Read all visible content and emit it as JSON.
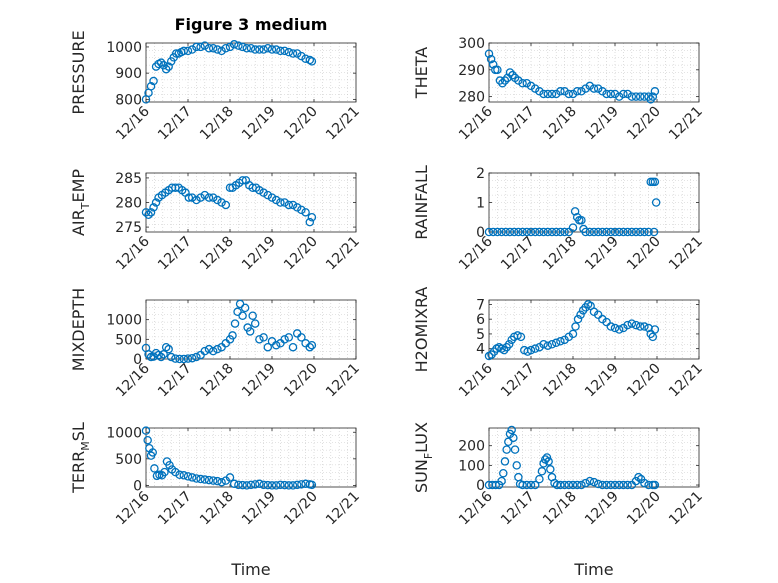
{
  "title": "Figure 3 medium",
  "xlabel": "Time",
  "chart_data": [
    {
      "type": "scatter",
      "ylabel": "PRESSURE",
      "xlim": [
        0,
        5
      ],
      "ylim": [
        790,
        1015
      ],
      "yticks": [
        800,
        900,
        1000
      ],
      "xticks": [
        "12/16",
        "12/17",
        "12/18",
        "12/19",
        "12/20",
        "12/21"
      ],
      "grid": true,
      "x": [
        0.0,
        0.06,
        0.12,
        0.18,
        0.24,
        0.3,
        0.36,
        0.42,
        0.48,
        0.54,
        0.6,
        0.66,
        0.72,
        0.78,
        0.84,
        0.9,
        1.0,
        1.1,
        1.2,
        1.3,
        1.4,
        1.5,
        1.6,
        1.7,
        1.8,
        1.9,
        2.0,
        2.1,
        2.2,
        2.3,
        2.4,
        2.5,
        2.6,
        2.7,
        2.8,
        2.9,
        3.0,
        3.1,
        3.2,
        3.3,
        3.4,
        3.5,
        3.6,
        3.7,
        3.8,
        3.9,
        3.95
      ],
      "y": [
        800,
        825,
        850,
        870,
        925,
        935,
        940,
        930,
        915,
        925,
        945,
        960,
        975,
        975,
        980,
        985,
        985,
        990,
        1000,
        1000,
        1005,
        995,
        995,
        990,
        985,
        995,
        1000,
        1010,
        1005,
        1000,
        995,
        995,
        990,
        990,
        990,
        995,
        990,
        990,
        985,
        985,
        980,
        975,
        975,
        965,
        955,
        950,
        945
      ]
    },
    {
      "type": "scatter",
      "ylabel": "THETA",
      "xlim": [
        0,
        5
      ],
      "ylim": [
        278,
        300
      ],
      "yticks": [
        280,
        290,
        300
      ],
      "xticks": [
        "12/16",
        "12/17",
        "12/18",
        "12/19",
        "12/20",
        "12/21"
      ],
      "grid": true,
      "x": [
        0.0,
        0.05,
        0.1,
        0.15,
        0.2,
        0.26,
        0.32,
        0.38,
        0.44,
        0.5,
        0.56,
        0.62,
        0.7,
        0.8,
        0.9,
        1.0,
        1.1,
        1.2,
        1.3,
        1.4,
        1.5,
        1.6,
        1.7,
        1.8,
        1.9,
        2.0,
        2.1,
        2.2,
        2.3,
        2.4,
        2.5,
        2.6,
        2.7,
        2.8,
        2.9,
        3.0,
        3.1,
        3.2,
        3.3,
        3.4,
        3.5,
        3.6,
        3.7,
        3.8,
        3.85,
        3.9,
        3.95
      ],
      "y": [
        296,
        294,
        292,
        290,
        290,
        286,
        285,
        286,
        287,
        289,
        288,
        287,
        286,
        285,
        285,
        284,
        283,
        282,
        281,
        281,
        281,
        281,
        282,
        282,
        281,
        281,
        282,
        282,
        283,
        284,
        283,
        283,
        282,
        281,
        281,
        281,
        280,
        281,
        281,
        280,
        280,
        280,
        280,
        280,
        279,
        280,
        282
      ]
    },
    {
      "type": "scatter",
      "ylabel": "AIR_TEMP",
      "xlim": [
        0,
        5
      ],
      "ylim": [
        274,
        286
      ],
      "yticks": [
        275,
        280,
        285
      ],
      "xticks": [
        "12/16",
        "12/17",
        "12/18",
        "12/19",
        "12/20",
        "12/21"
      ],
      "grid": true,
      "x": [
        0.0,
        0.06,
        0.12,
        0.18,
        0.24,
        0.3,
        0.38,
        0.46,
        0.54,
        0.62,
        0.7,
        0.78,
        0.86,
        0.94,
        1.02,
        1.1,
        1.2,
        1.3,
        1.4,
        1.5,
        1.6,
        1.7,
        1.8,
        1.9,
        2.0,
        2.06,
        2.14,
        2.22,
        2.3,
        2.38,
        2.46,
        2.54,
        2.62,
        2.7,
        2.8,
        2.9,
        3.0,
        3.1,
        3.2,
        3.3,
        3.4,
        3.5,
        3.6,
        3.7,
        3.8,
        3.9,
        3.95
      ],
      "y": [
        278,
        277.5,
        278,
        279,
        280,
        281,
        281.5,
        282,
        282.5,
        283,
        283,
        283,
        282.5,
        282,
        281,
        281,
        280.5,
        281,
        281.5,
        281,
        281,
        280.5,
        280,
        279.5,
        283,
        283,
        283.5,
        284,
        284.5,
        284.5,
        283.5,
        283,
        283,
        282.5,
        282,
        281.5,
        281,
        280.5,
        280,
        280,
        279.5,
        279.5,
        279,
        278.5,
        278,
        276,
        277
      ]
    },
    {
      "type": "scatter",
      "ylabel": "RAINFALL",
      "xlim": [
        0,
        5
      ],
      "ylim": [
        0,
        2
      ],
      "yticks": [
        0,
        1,
        2
      ],
      "xticks": [
        "12/16",
        "12/17",
        "12/18",
        "12/19",
        "12/20",
        "12/21"
      ],
      "grid": true,
      "x": [
        0.0,
        0.1,
        0.2,
        0.3,
        0.4,
        0.5,
        0.6,
        0.7,
        0.8,
        0.9,
        1.0,
        1.1,
        1.2,
        1.3,
        1.4,
        1.5,
        1.6,
        1.7,
        1.8,
        1.9,
        2.0,
        2.05,
        2.1,
        2.15,
        2.2,
        2.25,
        2.3,
        2.4,
        2.5,
        2.6,
        2.7,
        2.8,
        2.9,
        3.0,
        3.1,
        3.2,
        3.3,
        3.4,
        3.5,
        3.6,
        3.7,
        3.8,
        3.85,
        3.9,
        3.95,
        3.98,
        3.93
      ],
      "y": [
        0,
        0,
        0,
        0,
        0,
        0,
        0,
        0,
        0,
        0,
        0,
        0,
        0,
        0,
        0,
        0,
        0,
        0,
        0,
        0,
        0.15,
        0.7,
        0.5,
        0.4,
        0.4,
        0.1,
        0,
        0,
        0,
        0,
        0,
        0,
        0,
        0,
        0,
        0,
        0,
        0,
        0,
        0,
        0,
        0,
        1.7,
        1.7,
        1.7,
        1.0,
        0
      ]
    },
    {
      "type": "scatter",
      "ylabel": "MIXDEPTH",
      "xlim": [
        0,
        5
      ],
      "ylim": [
        0,
        1500
      ],
      "yticks": [
        0,
        500,
        1000
      ],
      "xticks": [
        "12/16",
        "12/17",
        "12/18",
        "12/19",
        "12/20",
        "12/21"
      ],
      "grid": true,
      "x": [
        0.0,
        0.06,
        0.12,
        0.18,
        0.24,
        0.3,
        0.36,
        0.42,
        0.48,
        0.54,
        0.6,
        0.7,
        0.8,
        0.9,
        1.0,
        1.1,
        1.2,
        1.3,
        1.4,
        1.5,
        1.6,
        1.7,
        1.8,
        1.9,
        2.0,
        2.06,
        2.12,
        2.18,
        2.24,
        2.3,
        2.36,
        2.42,
        2.48,
        2.54,
        2.6,
        2.7,
        2.8,
        2.9,
        3.0,
        3.1,
        3.2,
        3.3,
        3.4,
        3.5,
        3.6,
        3.7,
        3.8,
        3.9,
        3.95
      ],
      "y": [
        280,
        120,
        50,
        60,
        150,
        100,
        50,
        120,
        300,
        250,
        50,
        10,
        0,
        0,
        10,
        20,
        50,
        100,
        200,
        250,
        200,
        250,
        300,
        400,
        500,
        600,
        900,
        1200,
        1400,
        1100,
        1300,
        800,
        700,
        1100,
        900,
        500,
        550,
        300,
        450,
        350,
        400,
        500,
        550,
        300,
        650,
        550,
        400,
        300,
        350
      ]
    },
    {
      "type": "scatter",
      "ylabel": "H2OMIXRA",
      "xlim": [
        0,
        5
      ],
      "ylim": [
        3.3,
        7.3
      ],
      "yticks": [
        4,
        5,
        6,
        7
      ],
      "xticks": [
        "12/16",
        "12/17",
        "12/18",
        "12/19",
        "12/20",
        "12/21"
      ],
      "grid": true,
      "x": [
        0.0,
        0.06,
        0.12,
        0.18,
        0.24,
        0.3,
        0.36,
        0.42,
        0.48,
        0.54,
        0.6,
        0.68,
        0.76,
        0.84,
        0.92,
        1.0,
        1.1,
        1.2,
        1.3,
        1.4,
        1.5,
        1.6,
        1.7,
        1.8,
        1.9,
        2.0,
        2.06,
        2.12,
        2.18,
        2.24,
        2.3,
        2.36,
        2.42,
        2.5,
        2.6,
        2.7,
        2.8,
        2.9,
        3.0,
        3.1,
        3.2,
        3.3,
        3.4,
        3.5,
        3.6,
        3.7,
        3.8,
        3.85,
        3.9,
        3.95
      ],
      "y": [
        3.5,
        3.6,
        3.8,
        4.0,
        4.1,
        4.0,
        3.9,
        4.1,
        4.3,
        4.6,
        4.8,
        4.9,
        4.8,
        3.9,
        3.8,
        3.9,
        4.0,
        4.1,
        4.3,
        4.2,
        4.3,
        4.4,
        4.5,
        4.6,
        4.8,
        5.0,
        5.5,
        6.0,
        6.3,
        6.6,
        6.8,
        7.0,
        6.9,
        6.5,
        6.3,
        6.0,
        5.8,
        5.5,
        5.4,
        5.3,
        5.4,
        5.6,
        5.7,
        5.6,
        5.5,
        5.5,
        5.4,
        5.0,
        4.8,
        5.3
      ]
    },
    {
      "type": "scatter",
      "ylabel": "TERR_MSL",
      "xlim": [
        0,
        5
      ],
      "ylim": [
        -30,
        1080
      ],
      "yticks": [
        0,
        500,
        1000
      ],
      "xticks": [
        "12/16",
        "12/17",
        "12/18",
        "12/19",
        "12/20",
        "12/21"
      ],
      "grid": true,
      "x": [
        0.0,
        0.04,
        0.08,
        0.12,
        0.16,
        0.2,
        0.26,
        0.32,
        0.38,
        0.44,
        0.5,
        0.56,
        0.62,
        0.7,
        0.8,
        0.9,
        1.0,
        1.1,
        1.2,
        1.3,
        1.4,
        1.5,
        1.6,
        1.7,
        1.8,
        1.9,
        2.0,
        2.1,
        2.2,
        2.3,
        2.4,
        2.5,
        2.6,
        2.7,
        2.8,
        2.9,
        3.0,
        3.1,
        3.2,
        3.3,
        3.4,
        3.5,
        3.6,
        3.7,
        3.8,
        3.9,
        3.95
      ],
      "y": [
        1030,
        850,
        700,
        560,
        620,
        320,
        180,
        200,
        190,
        250,
        450,
        380,
        300,
        250,
        200,
        190,
        170,
        150,
        130,
        120,
        110,
        100,
        90,
        80,
        60,
        90,
        150,
        30,
        10,
        5,
        0,
        10,
        20,
        30,
        10,
        5,
        0,
        0,
        10,
        5,
        0,
        0,
        10,
        20,
        30,
        20,
        10
      ]
    },
    {
      "type": "scatter",
      "ylabel": "SUN_FLUX",
      "xlim": [
        0,
        5
      ],
      "ylim": [
        -10,
        290
      ],
      "yticks": [
        0,
        100,
        200
      ],
      "xticks": [
        "12/16",
        "12/17",
        "12/18",
        "12/19",
        "12/20",
        "12/21"
      ],
      "grid": true,
      "x": [
        0.0,
        0.08,
        0.16,
        0.24,
        0.3,
        0.34,
        0.38,
        0.42,
        0.46,
        0.5,
        0.54,
        0.58,
        0.62,
        0.66,
        0.7,
        0.74,
        0.8,
        0.9,
        1.0,
        1.1,
        1.2,
        1.26,
        1.3,
        1.34,
        1.38,
        1.42,
        1.46,
        1.5,
        1.56,
        1.62,
        1.7,
        1.8,
        1.9,
        2.0,
        2.1,
        2.2,
        2.3,
        2.4,
        2.5,
        2.6,
        2.7,
        2.8,
        2.9,
        3.0,
        3.1,
        3.2,
        3.3,
        3.4,
        3.5,
        3.56,
        3.62,
        3.7,
        3.8,
        3.9,
        3.95
      ],
      "y": [
        0,
        0,
        0,
        0,
        20,
        60,
        120,
        180,
        220,
        260,
        280,
        240,
        180,
        100,
        40,
        5,
        0,
        0,
        0,
        0,
        30,
        70,
        110,
        130,
        140,
        120,
        80,
        40,
        10,
        0,
        0,
        0,
        0,
        0,
        0,
        0,
        10,
        20,
        15,
        5,
        0,
        0,
        0,
        0,
        0,
        0,
        0,
        0,
        20,
        40,
        30,
        10,
        0,
        0,
        0
      ]
    }
  ]
}
